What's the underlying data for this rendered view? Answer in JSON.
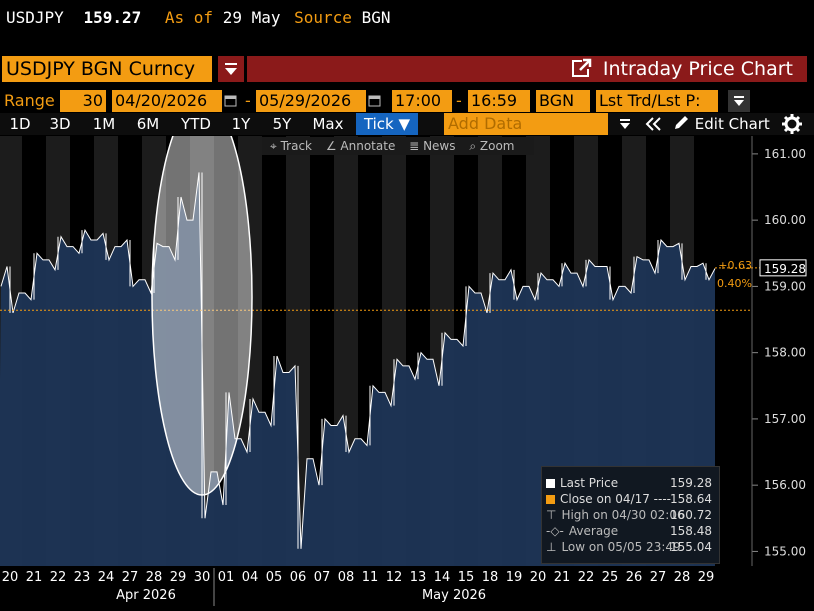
{
  "header": {
    "ticker": "USDJPY",
    "price": "159.27",
    "as_of_label": "As of",
    "as_of_date": "29 May",
    "source_label": "Source",
    "source_value": "BGN"
  },
  "security": {
    "name": "USDJPY BGN Curncy",
    "function_title": "Intraday Price Chart"
  },
  "range_bar": {
    "label": "Range",
    "period": "30",
    "start_date": "04/20/2026",
    "end_date": "05/29/2026",
    "start_time": "17:00",
    "end_time": "16:59",
    "source": "BGN",
    "price_type": "Lst Trd/Lst P:"
  },
  "period_buttons": [
    "1D",
    "3D",
    "1M",
    "6M",
    "YTD",
    "1Y",
    "5Y",
    "Max"
  ],
  "interval_button": "Tick ▼",
  "add_data_placeholder": "Add Data",
  "edit_chart_label": "Edit Chart",
  "chart_menu": [
    "Track",
    "Annotate",
    "News",
    "Zoom"
  ],
  "legend": {
    "items": [
      {
        "label": "Last Price",
        "value": "159.28"
      },
      {
        "label": "Close on 04/17 ---- ",
        "value": "158.64"
      },
      {
        "label": "High on 04/30 02:06",
        "value": "160.72"
      },
      {
        "label": "Average",
        "value": "158.48"
      },
      {
        "label": "Low on 05/05 23:49",
        "value": "155.04"
      }
    ]
  },
  "last_price_tag": "159.28",
  "change_abs": "+0.63",
  "change_pct": "0.40%",
  "colors": {
    "accent": "#f39c12",
    "title_bar": "#8b1a1a",
    "area_fill": "#1d3556",
    "line": "#ffffff",
    "weekend_shade": "#1c1c1c",
    "tick_button": "#1565c0"
  },
  "chart_data": {
    "type": "area",
    "title": "",
    "xlabel": "",
    "ylabel": "",
    "ylim": [
      154.78,
      161.27
    ],
    "y_ticks": [
      "161.00",
      "160.00",
      "159.00",
      "158.00",
      "157.00",
      "156.00",
      "155.00"
    ],
    "x_tick_labels": [
      "20",
      "21",
      "22",
      "23",
      "24",
      "27",
      "28",
      "29",
      "30",
      "01",
      "04",
      "05",
      "06",
      "07",
      "08",
      "11",
      "12",
      "13",
      "14",
      "15",
      "18",
      "19",
      "20",
      "21",
      "22",
      "25",
      "26",
      "27",
      "28",
      "29"
    ],
    "x_group_labels": [
      "Apr 2026",
      "May 2026"
    ],
    "reference_close": 158.64,
    "series": [
      {
        "name": "Last Price",
        "x": [
          "04/20",
          "04/21",
          "04/22",
          "04/23",
          "04/24",
          "04/27",
          "04/28",
          "04/29",
          "04/30",
          "05/01",
          "05/04",
          "05/05",
          "05/06",
          "05/07",
          "05/08",
          "05/11",
          "05/12",
          "05/13",
          "05/14",
          "05/15",
          "05/18",
          "05/19",
          "05/20",
          "05/21",
          "05/22",
          "05/25",
          "05/26",
          "05/27",
          "05/28",
          "05/29"
        ],
        "open": [
          159.0,
          158.9,
          159.4,
          159.6,
          159.7,
          159.6,
          159.1,
          159.6,
          160.0,
          156.2,
          156.7,
          157.1,
          157.7,
          156.4,
          156.9,
          156.7,
          157.4,
          157.8,
          157.9,
          158.2,
          158.9,
          159.1,
          159.0,
          159.1,
          159.2,
          159.3,
          159.0,
          159.4,
          159.6,
          159.3
        ],
        "close": [
          158.9,
          159.4,
          159.6,
          159.7,
          159.6,
          159.1,
          159.6,
          160.0,
          156.2,
          156.7,
          157.1,
          157.7,
          156.4,
          156.9,
          156.7,
          157.4,
          157.8,
          157.9,
          158.2,
          158.9,
          159.1,
          159.0,
          159.1,
          159.2,
          159.3,
          159.0,
          159.4,
          159.6,
          159.3,
          159.27
        ],
        "high": [
          159.3,
          159.5,
          159.75,
          159.85,
          159.8,
          159.7,
          159.65,
          160.35,
          160.72,
          157.4,
          157.3,
          157.95,
          157.8,
          157.0,
          157.05,
          157.5,
          157.9,
          158.0,
          158.3,
          159.0,
          159.2,
          159.25,
          159.2,
          159.35,
          159.4,
          159.3,
          159.45,
          159.7,
          159.65,
          159.35
        ],
        "low": [
          158.6,
          158.8,
          159.25,
          159.5,
          159.4,
          159.0,
          158.9,
          159.4,
          155.5,
          155.7,
          156.5,
          156.9,
          155.04,
          156.0,
          156.5,
          156.6,
          157.2,
          157.6,
          157.5,
          158.1,
          158.6,
          158.8,
          158.8,
          159.0,
          159.0,
          158.8,
          158.9,
          159.2,
          159.1,
          159.1
        ]
      }
    ],
    "highlight_ellipse_dates": [
      "04/29",
      "05/01"
    ]
  }
}
